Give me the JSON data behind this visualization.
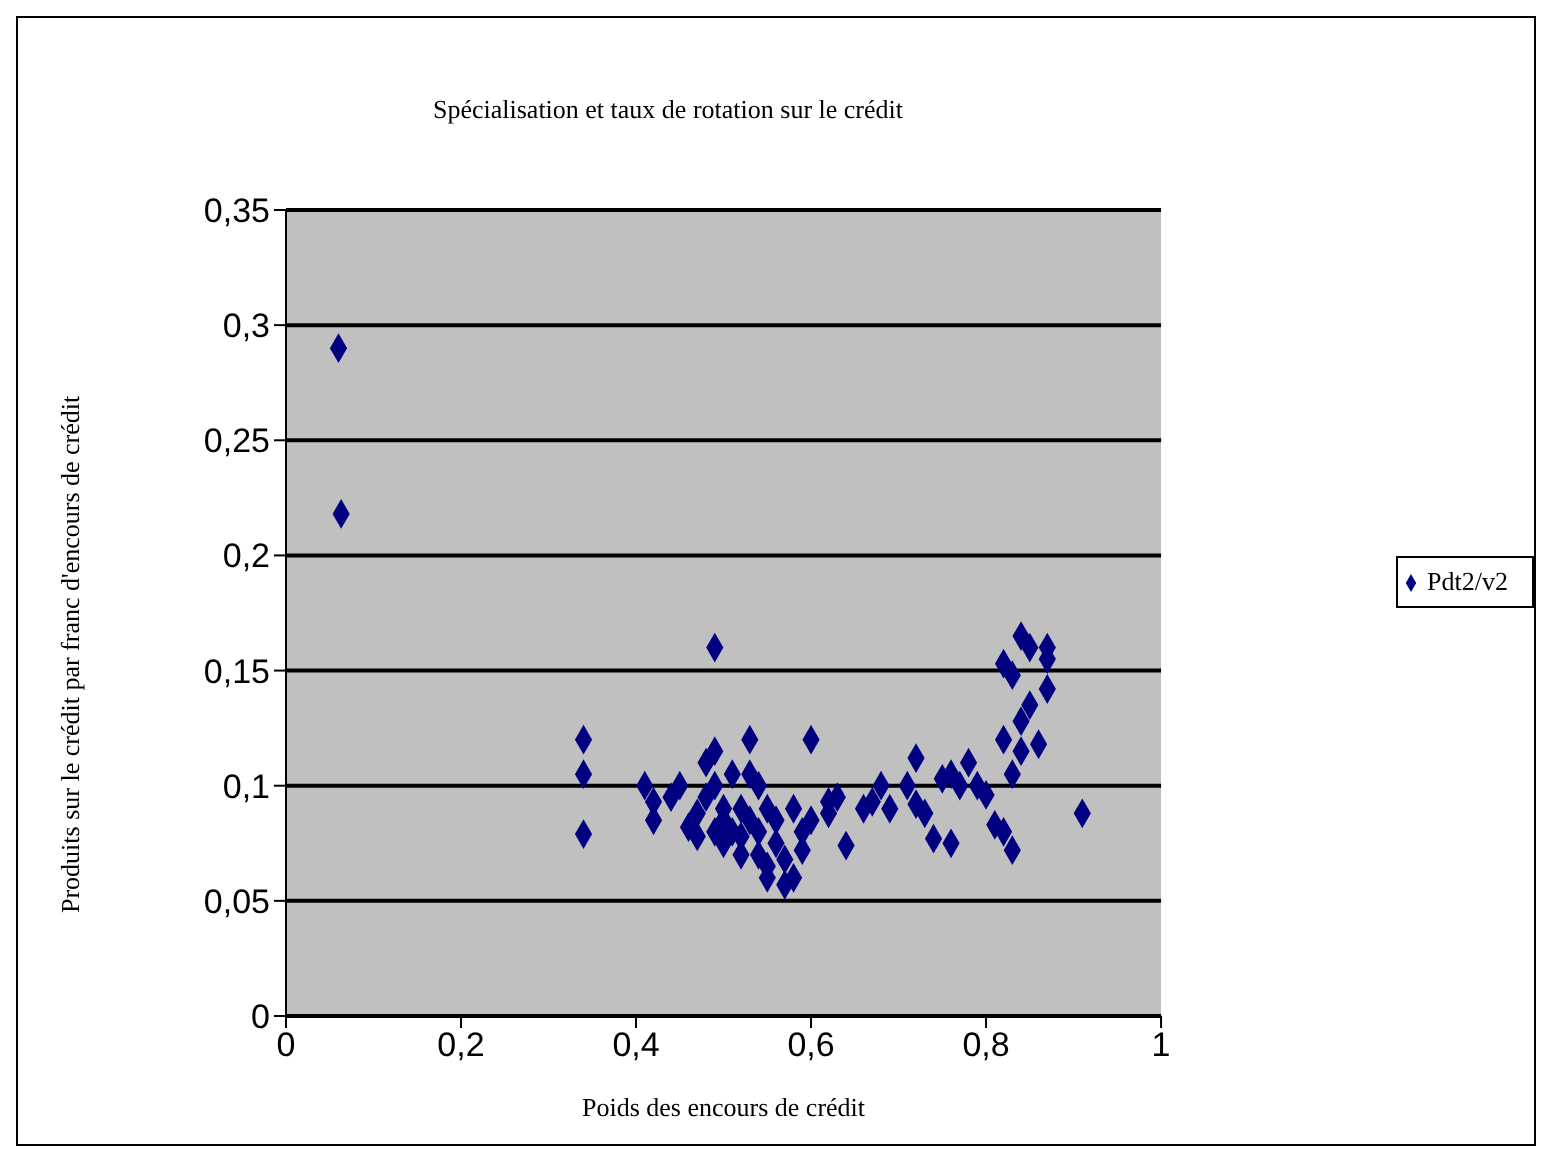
{
  "chart_data": {
    "type": "scatter",
    "title": "Spécialisation et taux de rotation sur le crédit",
    "xlabel": "Poids des encours de crédit",
    "ylabel": "Produits sur le crédit par franc d'encours de crédit",
    "x": [
      0.06,
      0.063,
      0.34,
      0.34,
      0.34,
      0.41,
      0.42,
      0.42,
      0.44,
      0.45,
      0.46,
      0.47,
      0.47,
      0.48,
      0.48,
      0.49,
      0.49,
      0.49,
      0.49,
      0.5,
      0.5,
      0.5,
      0.51,
      0.51,
      0.52,
      0.52,
      0.52,
      0.53,
      0.53,
      0.53,
      0.54,
      0.54,
      0.54,
      0.55,
      0.55,
      0.55,
      0.56,
      0.56,
      0.57,
      0.57,
      0.58,
      0.58,
      0.59,
      0.59,
      0.6,
      0.6,
      0.62,
      0.62,
      0.63,
      0.64,
      0.66,
      0.67,
      0.68,
      0.69,
      0.71,
      0.72,
      0.72,
      0.73,
      0.74,
      0.75,
      0.76,
      0.76,
      0.77,
      0.78,
      0.79,
      0.8,
      0.81,
      0.82,
      0.82,
      0.82,
      0.83,
      0.83,
      0.83,
      0.84,
      0.84,
      0.84,
      0.85,
      0.85,
      0.86,
      0.87,
      0.87,
      0.87,
      0.91
    ],
    "series": [
      {
        "name": "Pdt2/v2",
        "color": "#000080",
        "values": [
          0.29,
          0.218,
          0.12,
          0.105,
          0.079,
          0.1,
          0.093,
          0.085,
          0.095,
          0.1,
          0.082,
          0.088,
          0.078,
          0.11,
          0.095,
          0.16,
          0.115,
          0.1,
          0.08,
          0.075,
          0.09,
          0.085,
          0.105,
          0.08,
          0.09,
          0.07,
          0.078,
          0.12,
          0.105,
          0.085,
          0.1,
          0.08,
          0.07,
          0.09,
          0.065,
          0.06,
          0.085,
          0.075,
          0.068,
          0.057,
          0.06,
          0.09,
          0.08,
          0.072,
          0.12,
          0.085,
          0.088,
          0.093,
          0.095,
          0.074,
          0.09,
          0.093,
          0.1,
          0.09,
          0.1,
          0.112,
          0.092,
          0.088,
          0.077,
          0.103,
          0.075,
          0.105,
          0.1,
          0.11,
          0.1,
          0.096,
          0.083,
          0.08,
          0.12,
          0.153,
          0.148,
          0.072,
          0.105,
          0.115,
          0.165,
          0.128,
          0.135,
          0.16,
          0.118,
          0.16,
          0.155,
          0.142,
          0.088
        ]
      }
    ],
    "xlim": [
      0,
      1
    ],
    "xticks": [
      0,
      {
        "value": 0.2,
        "label": "0,2"
      },
      {
        "value": 0.4,
        "label": "0,4"
      },
      {
        "value": 0.6,
        "label": "0,6"
      },
      {
        "value": 0.8,
        "label": "0,8"
      },
      1
    ],
    "ylim": [
      0,
      0.35
    ],
    "yticks": [
      0,
      {
        "value": 0.05,
        "label": "0,05"
      },
      {
        "value": 0.1,
        "label": "0,1"
      },
      {
        "value": 0.15,
        "label": "0,15"
      },
      {
        "value": 0.2,
        "label": "0,2"
      },
      {
        "value": 0.25,
        "label": "0,25"
      },
      {
        "value": 0.3,
        "label": "0,3"
      },
      {
        "value": 0.35,
        "label": "0,35"
      }
    ],
    "grid": "y",
    "legend": "right",
    "marker": "diamond"
  }
}
